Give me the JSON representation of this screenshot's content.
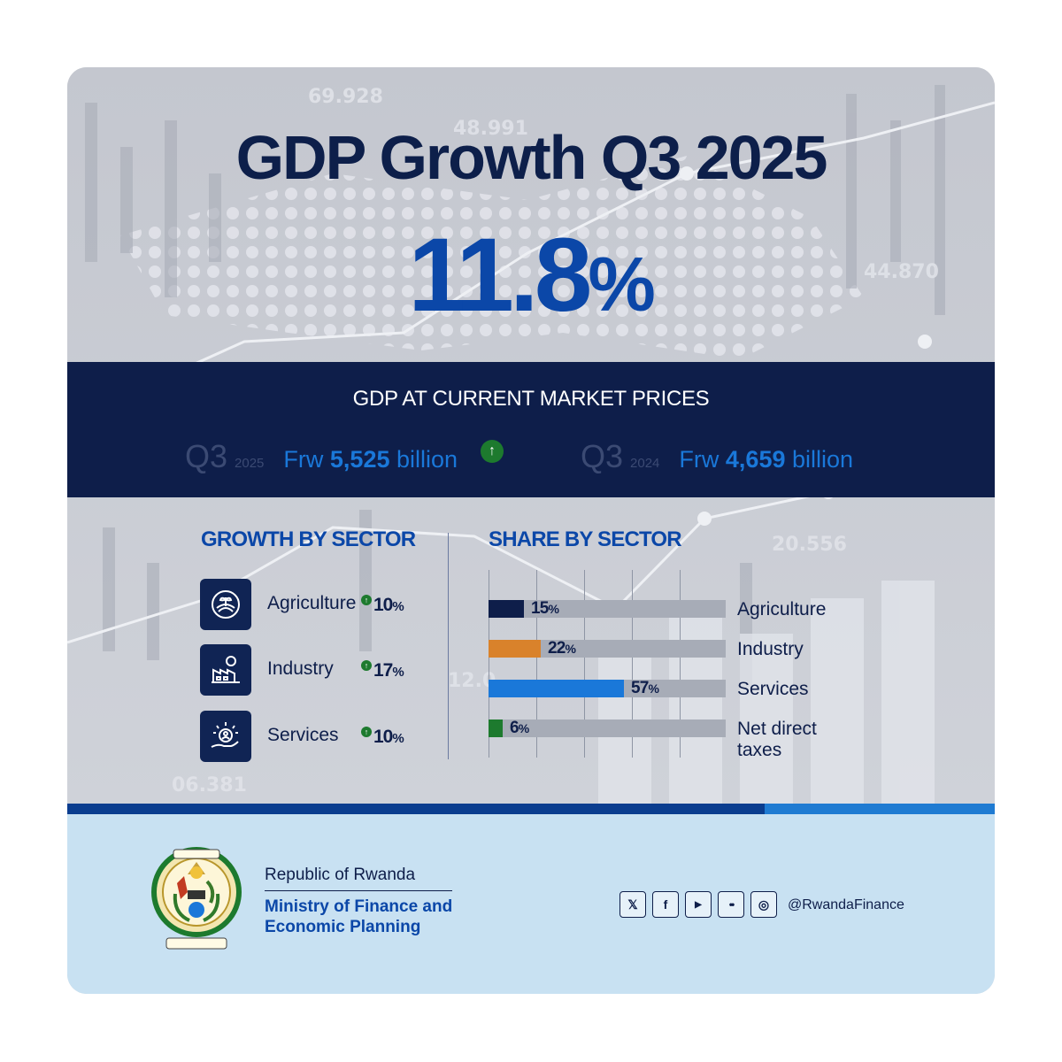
{
  "title": "GDP Growth Q3 2025",
  "headline": {
    "number": "11.8",
    "unit": "%"
  },
  "market_prices": {
    "title": "GDP AT CURRENT MARKET PRICES",
    "current": {
      "quarter": "Q3",
      "year": "2025",
      "currency": "Frw",
      "amount": "5,525",
      "unit": "billion",
      "trend_icon": "arrow-up-icon"
    },
    "previous": {
      "quarter": "Q3",
      "year": "2024",
      "currency": "Frw",
      "amount": "4,659",
      "unit": "billion"
    }
  },
  "background_numbers": [
    "69.928",
    "48.991",
    "44.870",
    "20.556",
    "12.0",
    "06.381"
  ],
  "growth_by_sector": {
    "title": "GROWTH BY SECTOR",
    "items": [
      {
        "name": "Agriculture",
        "value": "10",
        "unit": "%",
        "icon": "agriculture-icon"
      },
      {
        "name": "Industry",
        "value": "17",
        "unit": "%",
        "icon": "industry-icon"
      },
      {
        "name": "Services",
        "value": "10",
        "unit": "%",
        "icon": "services-icon"
      }
    ]
  },
  "share_by_sector": {
    "title": "SHARE BY SECTOR"
  },
  "chart_data": {
    "type": "bar",
    "orientation": "horizontal",
    "categories": [
      "Agriculture",
      "Industry",
      "Services",
      "Net direct taxes"
    ],
    "values": [
      15,
      22,
      57,
      6
    ],
    "labels": [
      "15",
      "22",
      "57",
      "6"
    ],
    "unit": "%",
    "colors": [
      "#0e1e4a",
      "#d9822b",
      "#1a78d9",
      "#1d7a2e"
    ],
    "xlim": [
      0,
      100
    ],
    "grid": true,
    "title": "SHARE BY SECTOR"
  },
  "colors": {
    "navy": "#0e1e4a",
    "blue": "#0b47a8",
    "green": "#1d7a2e",
    "footer_bg": "#c8e1f2"
  },
  "footer": {
    "org_line1": "Republic of Rwanda",
    "org_line2": "Ministry of Finance and",
    "org_line3": "Economic Planning",
    "seal_icon": "rwanda-coat-of-arms",
    "socials": [
      {
        "name": "x-icon",
        "glyph": "𝕏"
      },
      {
        "name": "facebook-icon",
        "glyph": "f"
      },
      {
        "name": "youtube-icon",
        "glyph": "▶"
      },
      {
        "name": "flickr-icon",
        "glyph": "••"
      },
      {
        "name": "instagram-icon",
        "glyph": "◎"
      }
    ],
    "handle": "@RwandaFinance"
  }
}
